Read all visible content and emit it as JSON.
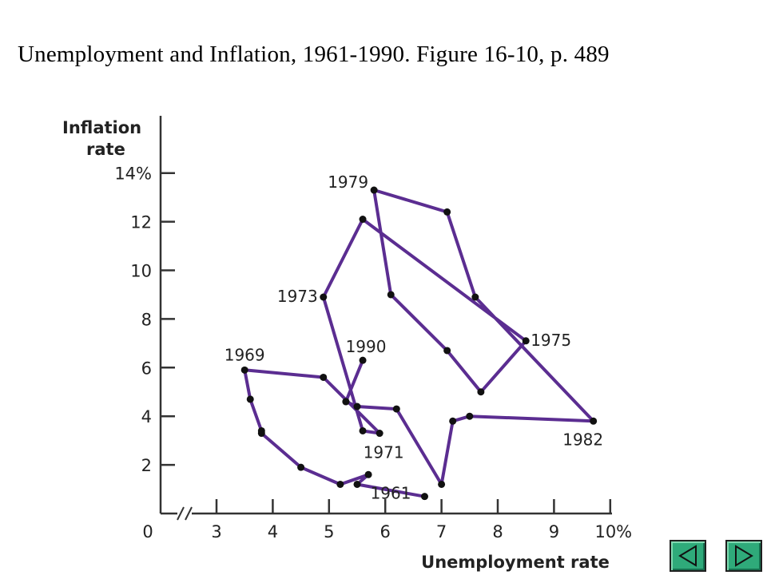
{
  "slide": {
    "title": "Unemployment and Inflation, 1961-1990. Figure 16-10, p. 489"
  },
  "nav": {
    "prev_icon": "triangle-left-icon",
    "next_icon": "triangle-right-icon",
    "button_color": "#2faa7a"
  },
  "chart_data": {
    "type": "line",
    "title": "",
    "xlabel": "Unemployment rate",
    "ylabel_lines": [
      "Inflation",
      "rate"
    ],
    "x_ticks": [
      {
        "value": 0,
        "label": "0"
      },
      {
        "value": 3,
        "label": "3"
      },
      {
        "value": 4,
        "label": "4"
      },
      {
        "value": 5,
        "label": "5"
      },
      {
        "value": 6,
        "label": "6"
      },
      {
        "value": 7,
        "label": "7"
      },
      {
        "value": 8,
        "label": "8"
      },
      {
        "value": 9,
        "label": "9"
      },
      {
        "value": 10,
        "label": "10%"
      }
    ],
    "y_ticks": [
      {
        "value": 0,
        "label": "0"
      },
      {
        "value": 2,
        "label": "2"
      },
      {
        "value": 4,
        "label": "4"
      },
      {
        "value": 6,
        "label": "6"
      },
      {
        "value": 8,
        "label": "8"
      },
      {
        "value": 10,
        "label": "10"
      },
      {
        "value": 12,
        "label": "12"
      },
      {
        "value": 14,
        "label": "14%"
      }
    ],
    "xlim": [
      2.1,
      10
    ],
    "x_axis_break": true,
    "ylim": [
      0,
      16
    ],
    "line_color": "#5b2d91",
    "marker_color": "#111111",
    "points": [
      {
        "year": 1961,
        "x": 6.7,
        "y": 0.7
      },
      {
        "year": 1962,
        "x": 5.5,
        "y": 1.2
      },
      {
        "year": 1963,
        "x": 5.7,
        "y": 1.6
      },
      {
        "year": 1964,
        "x": 5.2,
        "y": 1.2
      },
      {
        "year": 1965,
        "x": 4.5,
        "y": 1.9
      },
      {
        "year": 1966,
        "x": 3.8,
        "y": 3.3
      },
      {
        "year": 1967,
        "x": 3.8,
        "y": 3.4
      },
      {
        "year": 1968,
        "x": 3.6,
        "y": 4.7
      },
      {
        "year": 1969,
        "x": 3.5,
        "y": 5.9
      },
      {
        "year": 1970,
        "x": 4.9,
        "y": 5.6
      },
      {
        "year": 1971,
        "x": 5.9,
        "y": 3.3
      },
      {
        "year": 1972,
        "x": 5.6,
        "y": 3.4
      },
      {
        "year": 1973,
        "x": 4.9,
        "y": 8.9
      },
      {
        "year": 1974,
        "x": 5.6,
        "y": 12.1
      },
      {
        "year": 1975,
        "x": 8.5,
        "y": 7.1
      },
      {
        "year": 1976,
        "x": 7.7,
        "y": 5.0
      },
      {
        "year": 1977,
        "x": 7.1,
        "y": 6.7
      },
      {
        "year": 1978,
        "x": 6.1,
        "y": 9.0
      },
      {
        "year": 1979,
        "x": 5.8,
        "y": 13.3
      },
      {
        "year": 1980,
        "x": 7.1,
        "y": 12.4
      },
      {
        "year": 1981,
        "x": 7.6,
        "y": 8.9
      },
      {
        "year": 1982,
        "x": 9.7,
        "y": 3.8
      },
      {
        "year": 1983,
        "x": 7.5,
        "y": 4.0
      },
      {
        "year": 1984,
        "x": 7.2,
        "y": 3.8
      },
      {
        "year": 1985,
        "x": 7.0,
        "y": 1.2
      },
      {
        "year": 1986,
        "x": 6.2,
        "y": 4.3
      },
      {
        "year": 1987,
        "x": 5.5,
        "y": 4.4
      },
      {
        "year": 1988,
        "x": 5.3,
        "y": 4.6
      },
      {
        "year": 1989,
        "x": 5.3,
        "y": 4.6
      },
      {
        "year": 1990,
        "x": 5.6,
        "y": 6.3
      }
    ],
    "labeled_years": [
      {
        "year": 1961,
        "text": "1961"
      },
      {
        "year": 1969,
        "text": "1969"
      },
      {
        "year": 1971,
        "text": "1971"
      },
      {
        "year": 1973,
        "text": "1973"
      },
      {
        "year": 1975,
        "text": "1975"
      },
      {
        "year": 1979,
        "text": "1979"
      },
      {
        "year": 1982,
        "text": "1982"
      },
      {
        "year": 1990,
        "text": "1990"
      }
    ]
  }
}
